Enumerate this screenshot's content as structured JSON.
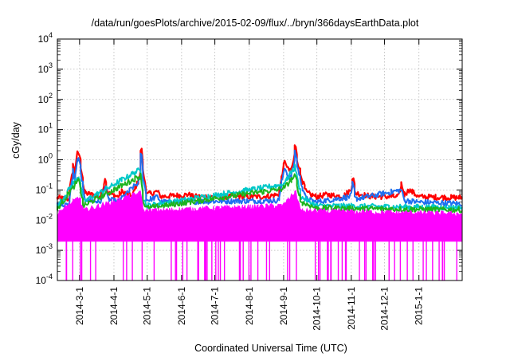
{
  "chart_data": {
    "type": "line",
    "title": "/data/run/goesPlots/archive/2015-02-09/flux/../bryn/366daysEarthData.plot",
    "xlabel": "Coordinated Universal Time (UTC)",
    "ylabel": "cGy/day",
    "y_scale": "log",
    "ylim": [
      0.0001,
      10000
    ],
    "xlim": [
      "2014-02-09",
      "2015-02-09"
    ],
    "grid": true,
    "x_ticks": [
      "2014-3-1",
      "2014-4-1",
      "2014-5-1",
      "2014-6-1",
      "2014-7-1",
      "2014-8-1",
      "2014-9-1",
      "2014-10-1",
      "2014-11-1",
      "2014-12-1",
      "2015-1-1"
    ],
    "y_ticks": [
      {
        "value": 0.0001,
        "mant": "10",
        "exp": "-4"
      },
      {
        "value": 0.001,
        "mant": "10",
        "exp": "-3"
      },
      {
        "value": 0.01,
        "mant": "10",
        "exp": "-2"
      },
      {
        "value": 0.1,
        "mant": "10",
        "exp": "-1"
      },
      {
        "value": 1,
        "mant": "10",
        "exp": "0"
      },
      {
        "value": 10,
        "mant": "10",
        "exp": "1"
      },
      {
        "value": 100,
        "mant": "10",
        "exp": "2"
      },
      {
        "value": 1000,
        "mant": "10",
        "exp": "3"
      },
      {
        "value": 10000,
        "mant": "10",
        "exp": "4"
      }
    ],
    "series": [
      {
        "color": "#ff0000",
        "baseline": 0.055,
        "points": [
          [
            "2014-02-09",
            0.055
          ],
          [
            "2014-02-20",
            0.05
          ],
          [
            "2014-02-24",
            0.9
          ],
          [
            "2014-02-25",
            0.2
          ],
          [
            "2014-02-27",
            1.6
          ],
          [
            "2014-03-01",
            1.7
          ],
          [
            "2014-03-04",
            0.3
          ],
          [
            "2014-03-06",
            0.08
          ],
          [
            "2014-03-20",
            0.06
          ],
          [
            "2014-03-25",
            0.25
          ],
          [
            "2014-03-27",
            0.08
          ],
          [
            "2014-04-05",
            0.06
          ],
          [
            "2014-04-09",
            0.09
          ],
          [
            "2014-04-18",
            0.06
          ],
          [
            "2014-04-25",
            0.3
          ],
          [
            "2014-04-26",
            3.5
          ],
          [
            "2014-04-28",
            0.4
          ],
          [
            "2014-05-01",
            0.07
          ],
          [
            "2014-05-11",
            0.09
          ],
          [
            "2014-05-14",
            0.06
          ],
          [
            "2014-06-08",
            0.07
          ],
          [
            "2014-06-12",
            0.06
          ],
          [
            "2014-07-25",
            0.06
          ],
          [
            "2014-08-15",
            0.06
          ],
          [
            "2014-08-28",
            0.07
          ],
          [
            "2014-09-01",
            0.5
          ],
          [
            "2014-09-03",
            0.9
          ],
          [
            "2014-09-05",
            0.5
          ],
          [
            "2014-09-08",
            0.4
          ],
          [
            "2014-09-10",
            0.7
          ],
          [
            "2014-09-12",
            3.3
          ],
          [
            "2014-09-14",
            1.0
          ],
          [
            "2014-09-17",
            0.3
          ],
          [
            "2014-09-22",
            0.08
          ],
          [
            "2014-10-01",
            0.06
          ],
          [
            "2014-10-11",
            0.07
          ],
          [
            "2014-10-25",
            0.06
          ],
          [
            "2014-11-01",
            0.1
          ],
          [
            "2014-11-03",
            0.3
          ],
          [
            "2014-11-05",
            0.08
          ],
          [
            "2014-11-20",
            0.06
          ],
          [
            "2014-12-14",
            0.06
          ],
          [
            "2014-12-17",
            0.17
          ],
          [
            "2014-12-19",
            0.07
          ],
          [
            "2014-12-24",
            0.1
          ],
          [
            "2015-01-01",
            0.06
          ],
          [
            "2015-02-09",
            0.055
          ]
        ]
      },
      {
        "color": "#1e6ff0",
        "baseline": 0.035,
        "points": [
          [
            "2014-02-09",
            0.035
          ],
          [
            "2014-02-20",
            0.03
          ],
          [
            "2014-02-24",
            0.6
          ],
          [
            "2014-02-25",
            0.12
          ],
          [
            "2014-02-27",
            0.9
          ],
          [
            "2014-03-01",
            1.0
          ],
          [
            "2014-03-04",
            0.18
          ],
          [
            "2014-03-06",
            0.05
          ],
          [
            "2014-03-20",
            0.04
          ],
          [
            "2014-03-25",
            0.15
          ],
          [
            "2014-03-27",
            0.05
          ],
          [
            "2014-04-05",
            0.04
          ],
          [
            "2014-04-25",
            0.2
          ],
          [
            "2014-04-26",
            2.3
          ],
          [
            "2014-04-28",
            0.25
          ],
          [
            "2014-05-01",
            0.045
          ],
          [
            "2014-05-11",
            0.06
          ],
          [
            "2014-05-14",
            0.04
          ],
          [
            "2014-08-28",
            0.045
          ],
          [
            "2014-09-01",
            0.3
          ],
          [
            "2014-09-03",
            0.55
          ],
          [
            "2014-09-05",
            0.3
          ],
          [
            "2014-09-08",
            0.25
          ],
          [
            "2014-09-10",
            0.45
          ],
          [
            "2014-09-12",
            2.2
          ],
          [
            "2014-09-14",
            0.6
          ],
          [
            "2014-09-17",
            0.18
          ],
          [
            "2014-09-22",
            0.05
          ],
          [
            "2014-10-01",
            0.04
          ],
          [
            "2014-11-01",
            0.06
          ],
          [
            "2014-11-03",
            0.18
          ],
          [
            "2014-11-05",
            0.05
          ],
          [
            "2014-12-17",
            0.1
          ],
          [
            "2014-12-19",
            0.045
          ],
          [
            "2015-01-01",
            0.04
          ],
          [
            "2015-02-09",
            0.035
          ]
        ]
      },
      {
        "color": "#00c8c8",
        "baseline": 0.026,
        "points": [
          [
            "2014-02-09",
            0.026
          ],
          [
            "2014-02-27",
            0.25
          ],
          [
            "2014-03-01",
            0.3
          ],
          [
            "2014-03-05",
            0.04
          ],
          [
            "2014-04-26",
            0.5
          ],
          [
            "2014-04-28",
            0.05
          ],
          [
            "2014-05-01",
            0.03
          ],
          [
            "2014-09-01",
            0.15
          ],
          [
            "2014-09-12",
            0.6
          ],
          [
            "2014-09-17",
            0.06
          ],
          [
            "2014-10-01",
            0.03
          ],
          [
            "2015-02-09",
            0.026
          ]
        ]
      },
      {
        "color": "#1eb41e",
        "baseline": 0.022,
        "points": [
          [
            "2014-02-09",
            0.022
          ],
          [
            "2014-02-27",
            0.18
          ],
          [
            "2014-03-01",
            0.2
          ],
          [
            "2014-03-05",
            0.03
          ],
          [
            "2014-04-26",
            0.3
          ],
          [
            "2014-04-28",
            0.04
          ],
          [
            "2014-05-01",
            0.025
          ],
          [
            "2014-09-01",
            0.11
          ],
          [
            "2014-09-12",
            0.3
          ],
          [
            "2014-09-17",
            0.04
          ],
          [
            "2014-10-01",
            0.025
          ],
          [
            "2015-02-09",
            0.022
          ]
        ]
      },
      {
        "color": "#ff00ff",
        "baseline": 0.008,
        "lower": 0.002,
        "points": [
          [
            "2014-02-09",
            0.016
          ],
          [
            "2014-02-27",
            0.05
          ],
          [
            "2014-03-01",
            0.06
          ],
          [
            "2014-03-05",
            0.02
          ],
          [
            "2014-04-26",
            0.08
          ],
          [
            "2014-04-28",
            0.02
          ],
          [
            "2014-09-01",
            0.03
          ],
          [
            "2014-09-12",
            0.09
          ],
          [
            "2014-09-17",
            0.02
          ],
          [
            "2015-02-09",
            0.016
          ]
        ]
      }
    ]
  }
}
